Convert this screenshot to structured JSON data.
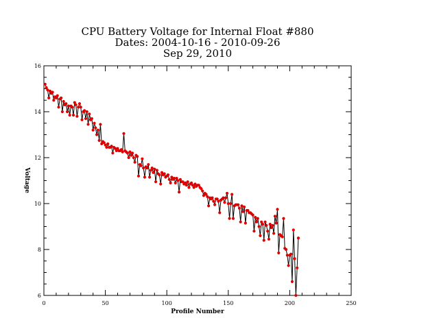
{
  "chart_data": {
    "type": "line",
    "title_lines": [
      "CPU Battery Voltage for Internal Float #880",
      "Dates:  2004-10-16 -  2010-09-26",
      "Sep 29, 2010"
    ],
    "xlabel": "Profile Number",
    "ylabel": "Voltage",
    "xlim": [
      0,
      250
    ],
    "ylim": [
      6,
      16
    ],
    "xticks": [
      0,
      50,
      100,
      150,
      200,
      250
    ],
    "yticks": [
      6,
      8,
      10,
      12,
      14,
      16
    ],
    "grid": false,
    "marker_color": "#e00000",
    "line_color": "#000000",
    "series": [
      {
        "x": [
          1,
          2,
          3,
          4,
          5,
          6,
          7,
          8,
          9,
          10,
          11,
          12,
          13,
          14,
          15,
          16,
          17,
          18,
          19,
          20,
          21,
          22,
          23,
          24,
          25,
          26,
          27,
          28,
          29,
          30,
          31,
          32,
          33,
          34,
          35,
          36,
          37,
          38,
          39,
          40,
          41,
          42,
          43,
          44,
          45,
          46,
          47,
          48,
          49,
          50,
          51,
          52,
          53,
          54,
          55,
          56,
          57,
          58,
          59,
          60,
          61,
          62,
          63,
          64,
          65,
          66,
          67,
          68,
          69,
          70,
          71,
          72,
          73,
          74,
          75,
          76,
          77,
          78,
          79,
          80,
          81,
          82,
          83,
          84,
          85,
          86,
          87,
          88,
          89,
          90,
          91,
          92,
          93,
          94,
          95,
          96,
          97,
          98,
          99,
          100,
          101,
          102,
          103,
          104,
          105,
          106,
          107,
          108,
          109,
          110,
          111,
          112,
          113,
          114,
          115,
          116,
          117,
          118,
          119,
          120,
          121,
          122,
          123,
          124,
          125,
          126,
          127,
          128,
          129,
          130,
          131,
          132,
          133,
          134,
          135,
          136,
          137,
          138,
          139,
          140,
          141,
          142,
          143,
          144,
          145,
          146,
          147,
          148,
          149,
          150,
          151,
          152,
          153,
          154,
          155,
          156,
          157,
          158,
          159,
          160,
          161,
          162,
          163,
          164,
          165,
          166,
          167,
          168,
          169,
          170,
          171,
          172,
          173,
          174,
          175,
          176,
          177,
          178,
          179,
          180,
          181,
          182,
          183,
          184,
          185,
          186,
          187,
          188,
          189,
          190,
          191,
          192,
          193,
          194,
          195,
          196,
          197,
          198,
          199,
          200,
          201,
          202,
          203,
          204,
          205,
          206,
          207
        ],
        "values": [
          15.2,
          15.05,
          14.95,
          14.6,
          14.9,
          14.8,
          14.85,
          14.5,
          14.65,
          14.6,
          14.7,
          14.2,
          14.55,
          14.6,
          14.0,
          14.45,
          14.3,
          14.35,
          14.0,
          14.25,
          13.85,
          14.25,
          14.2,
          13.85,
          14.4,
          14.3,
          13.8,
          14.2,
          14.35,
          14.2,
          13.65,
          14.0,
          14.05,
          13.7,
          14.0,
          13.45,
          13.9,
          13.65,
          13.7,
          13.2,
          13.5,
          13.3,
          13.0,
          13.2,
          12.75,
          13.45,
          12.6,
          12.7,
          12.65,
          12.55,
          12.45,
          12.6,
          12.45,
          12.45,
          12.5,
          12.2,
          12.45,
          12.4,
          12.3,
          12.4,
          12.3,
          12.3,
          12.35,
          12.25,
          13.05,
          12.3,
          12.25,
          12.2,
          12.0,
          12.25,
          12.1,
          12.2,
          12.0,
          11.8,
          12.1,
          12.05,
          11.2,
          11.7,
          11.65,
          11.95,
          11.55,
          11.15,
          11.6,
          11.55,
          11.7,
          11.15,
          11.45,
          11.55,
          11.35,
          11.5,
          10.95,
          11.45,
          11.3,
          11.25,
          10.85,
          11.35,
          11.25,
          11.3,
          11.15,
          11.2,
          11.25,
          11.05,
          10.9,
          11.15,
          11.05,
          11.1,
          10.9,
          11.1,
          11.0,
          10.5,
          11.05,
          10.95,
          10.95,
          10.85,
          10.9,
          10.8,
          10.95,
          10.7,
          10.85,
          10.9,
          10.8,
          10.7,
          10.85,
          10.75,
          10.8,
          10.8,
          10.7,
          10.65,
          10.55,
          10.35,
          10.45,
          10.4,
          10.3,
          9.9,
          10.25,
          10.2,
          10.25,
          10.1,
          9.95,
          10.2,
          10.2,
          10.1,
          9.6,
          10.15,
          10.2,
          10.25,
          10.05,
          10.25,
          10.45,
          10.0,
          9.35,
          10.0,
          10.4,
          9.35,
          9.9,
          9.95,
          9.95,
          9.95,
          9.8,
          9.2,
          9.9,
          9.65,
          9.85,
          9.15,
          9.7,
          9.7,
          9.6,
          9.6,
          9.55,
          9.5,
          8.8,
          9.4,
          9.2,
          9.35,
          9.0,
          8.6,
          9.2,
          9.1,
          8.4,
          9.2,
          9.05,
          8.8,
          8.45,
          9.1,
          8.95,
          9.05,
          8.7,
          9.45,
          9.15,
          9.75,
          7.85,
          8.65,
          8.6,
          8.55,
          9.35,
          8.05,
          8.0,
          7.75,
          7.3,
          7.75,
          7.8,
          6.6,
          8.85,
          7.6,
          6.0,
          7.2,
          8.5
        ]
      }
    ]
  }
}
